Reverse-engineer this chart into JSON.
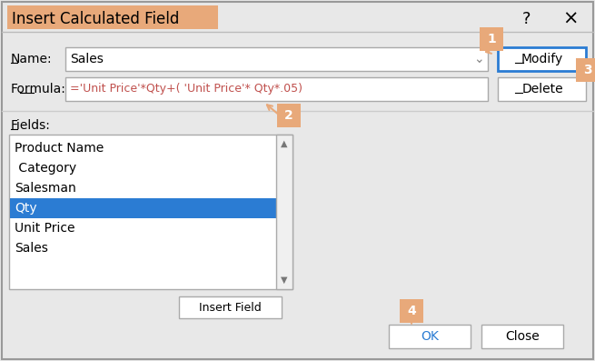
{
  "title": "Insert Calculated Field",
  "title_bg": "#E8A97A",
  "bg_color": "#E8E8E8",
  "name_label": "Name:",
  "name_value": "Sales",
  "formula_label": "Formula:",
  "formula_value": "='Unit Price'*Qty+( 'Unit Price'* Qty*.05)",
  "formula_text_color": "#C0504D",
  "fields_label": "Fields:",
  "field_items": [
    "Product Name",
    " Category",
    "Salesman",
    "Qty",
    "Unit Price",
    "Sales"
  ],
  "selected_field_index": 3,
  "selected_field_color": "#2B7CD3",
  "button_modify": "Modify",
  "button_delete": "Delete",
  "button_insert": "Insert Field",
  "button_ok": "OK",
  "button_close": "Close",
  "orange_color": "#E8A97A",
  "step_labels": [
    "1",
    "2",
    "3",
    "4"
  ],
  "modify_border_color": "#2B7CD3",
  "dialog_border": "#AAAAAA"
}
